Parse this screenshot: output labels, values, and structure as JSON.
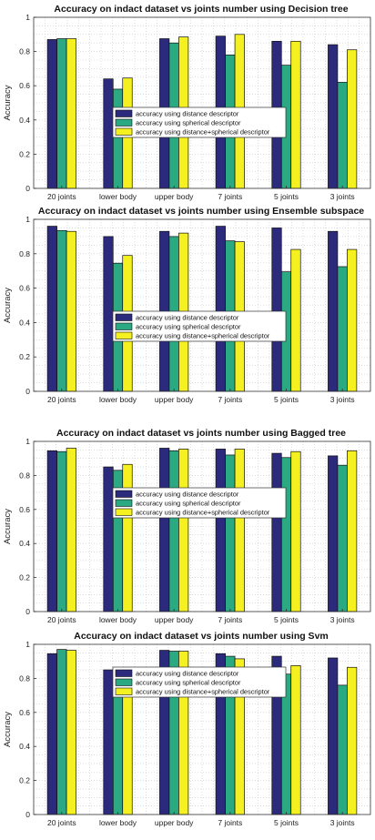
{
  "chart_data": [
    {
      "type": "bar",
      "title": "Accuracy on indact dataset vs joints number using Decision tree",
      "xlabel": "",
      "ylabel": "Accuracy",
      "ylim": [
        0,
        1
      ],
      "yticks": [
        "0",
        "0.2",
        "0.4",
        "0.6",
        "0.8",
        "1"
      ],
      "categories": [
        "20 joints",
        "lower body",
        "upper body",
        "7 joints",
        "5 joints",
        "3 joints"
      ],
      "grid": "minor dotted",
      "legend_position": "center",
      "series": [
        {
          "name": "accuracy using distance descriptor",
          "values": [
            0.87,
            0.64,
            0.875,
            0.89,
            0.86,
            0.84
          ]
        },
        {
          "name": "accuracy using spherical descriptor",
          "values": [
            0.875,
            0.58,
            0.85,
            0.78,
            0.72,
            0.62
          ]
        },
        {
          "name": "accuracy using distance+spherical descriptor",
          "values": [
            0.875,
            0.645,
            0.885,
            0.9,
            0.86,
            0.81
          ]
        }
      ]
    },
    {
      "type": "bar",
      "title": "Accuracy on indact dataset vs joints number using Ensemble subspace",
      "xlabel": "",
      "ylabel": "Accuracy",
      "ylim": [
        0,
        1
      ],
      "yticks": [
        "0",
        "0.2",
        "0.4",
        "0.6",
        "0.8",
        "1"
      ],
      "categories": [
        "20 joints",
        "lower body",
        "upper body",
        "7 joints",
        "5 joints",
        "3 joints"
      ],
      "grid": "minor dotted",
      "legend_position": "center",
      "series": [
        {
          "name": "accuracy using distance descriptor",
          "values": [
            0.96,
            0.9,
            0.93,
            0.96,
            0.95,
            0.93
          ]
        },
        {
          "name": "accuracy using spherical descriptor",
          "values": [
            0.935,
            0.745,
            0.9,
            0.875,
            0.695,
            0.725
          ]
        },
        {
          "name": "accuracy using distance+spherical descriptor",
          "values": [
            0.93,
            0.79,
            0.92,
            0.87,
            0.825,
            0.825
          ]
        }
      ]
    },
    {
      "type": "bar",
      "title": "Accuracy on indact dataset vs joints number using Bagged tree",
      "xlabel": "",
      "ylabel": "Accuracy",
      "ylim": [
        0,
        1
      ],
      "yticks": [
        "0",
        "0.2",
        "0.4",
        "0.6",
        "0.8",
        "1"
      ],
      "categories": [
        "20 joints",
        "lower body",
        "upper body",
        "7 joints",
        "5 joints",
        "3 joints"
      ],
      "grid": "minor dotted",
      "legend_position": "center",
      "series": [
        {
          "name": "accuracy using distance descriptor",
          "values": [
            0.945,
            0.85,
            0.96,
            0.955,
            0.93,
            0.915
          ]
        },
        {
          "name": "accuracy using spherical descriptor",
          "values": [
            0.94,
            0.83,
            0.945,
            0.92,
            0.905,
            0.86
          ]
        },
        {
          "name": "accuracy using distance+spherical descriptor",
          "values": [
            0.96,
            0.865,
            0.955,
            0.955,
            0.94,
            0.945
          ]
        }
      ]
    },
    {
      "type": "bar",
      "title": "Accuracy on indact dataset vs joints number using Svm",
      "xlabel": "",
      "ylabel": "Accuracy",
      "ylim": [
        0,
        1
      ],
      "yticks": [
        "0",
        "0.2",
        "0.4",
        "0.6",
        "0.8",
        "1"
      ],
      "categories": [
        "20 joints",
        "lower body",
        "upper body",
        "7 joints",
        "5 joints",
        "3 joints"
      ],
      "grid": "minor dotted",
      "legend_position": "center",
      "series": [
        {
          "name": "accuracy using distance descriptor",
          "values": [
            0.945,
            0.85,
            0.965,
            0.945,
            0.93,
            0.92
          ]
        },
        {
          "name": "accuracy using spherical descriptor",
          "values": [
            0.97,
            0.835,
            0.96,
            0.93,
            0.825,
            0.76
          ]
        },
        {
          "name": "accuracy using distance+spherical descriptor",
          "values": [
            0.965,
            0.84,
            0.96,
            0.915,
            0.875,
            0.865
          ]
        }
      ]
    }
  ],
  "colors": {
    "series": [
      "#2c2a7c",
      "#2aa982",
      "#f5f01f"
    ],
    "axis": "#333333",
    "grid": "#c8c8c8"
  }
}
